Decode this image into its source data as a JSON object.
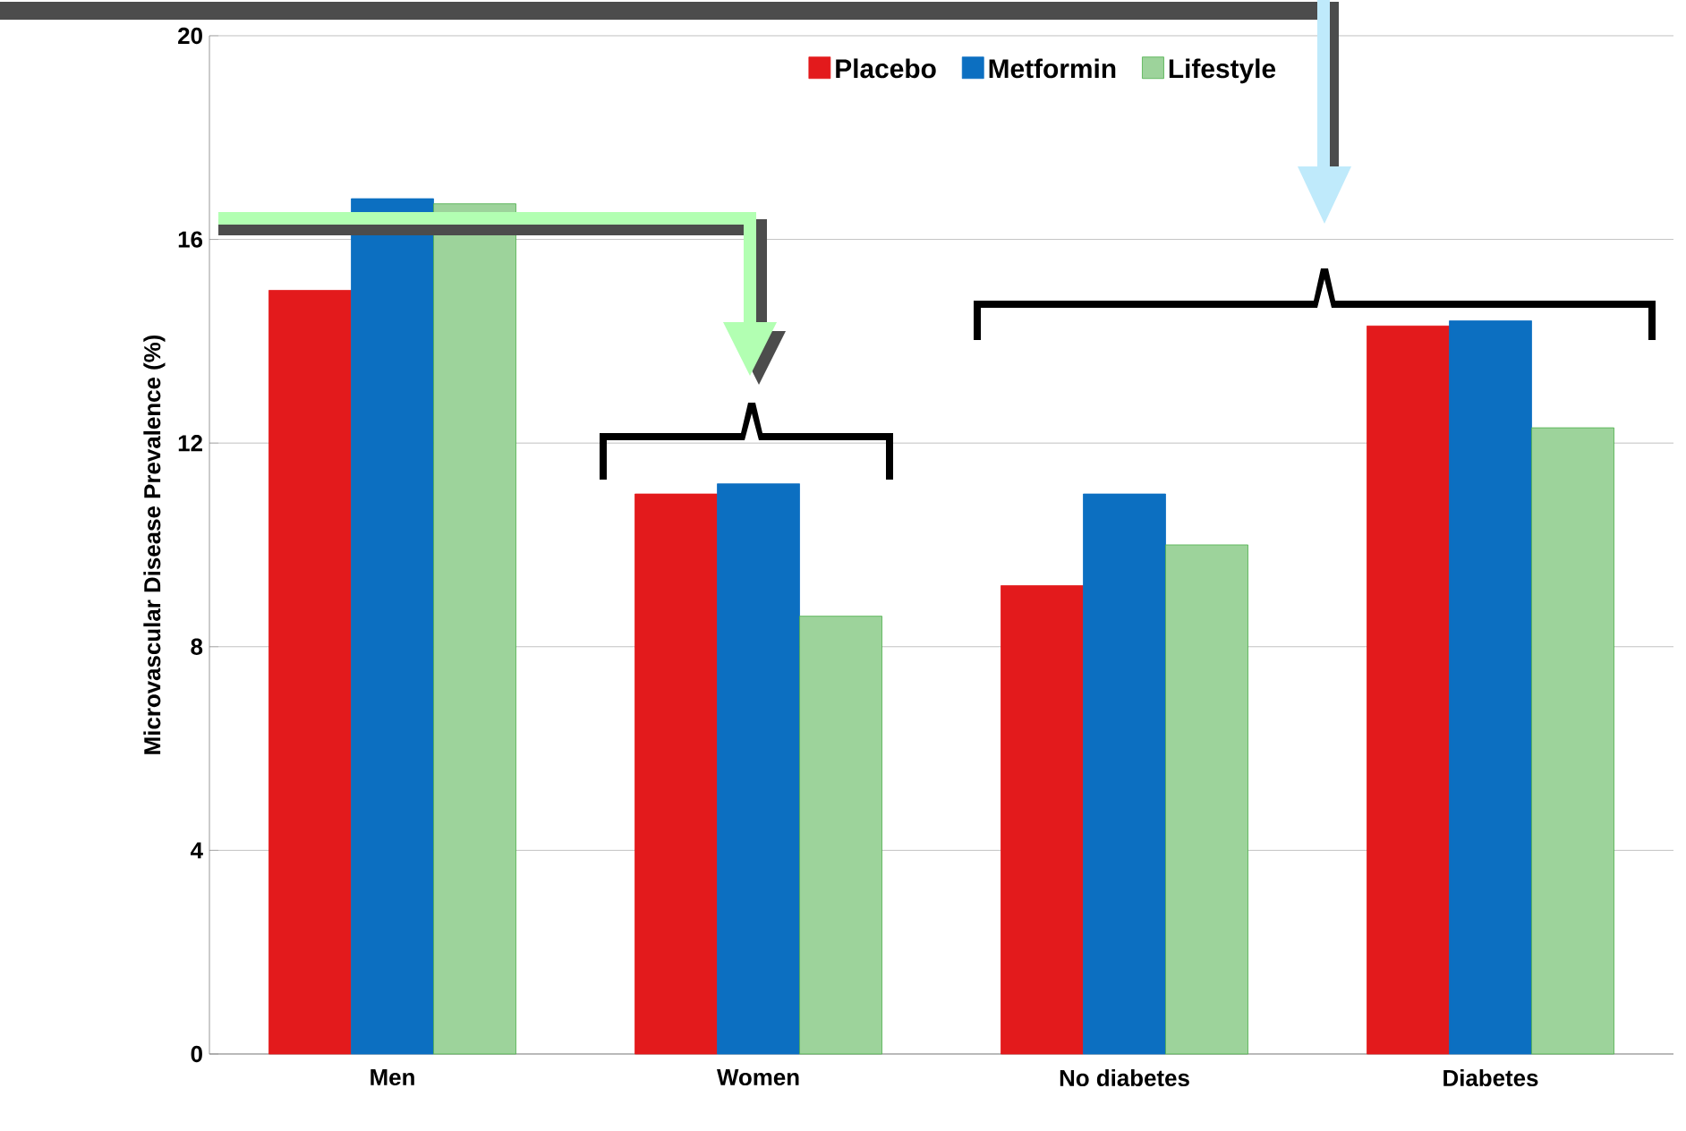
{
  "chart_data": {
    "type": "bar",
    "ylabel": "Microvascular Disease Prevalence (%)",
    "categories": [
      "Men",
      "Women",
      "No diabetes",
      "Diabetes"
    ],
    "series": [
      {
        "name": "Placebo",
        "color": "#e31a1c",
        "values": [
          15.0,
          11.0,
          9.2,
          14.3
        ]
      },
      {
        "name": "Metformin",
        "color": "#0c6fc1",
        "values": [
          16.8,
          11.2,
          11.0,
          14.4
        ]
      },
      {
        "name": "Lifestyle",
        "color": "#4daf4a",
        "values": [
          16.7,
          8.6,
          10.0,
          12.3
        ]
      }
    ],
    "ylim": [
      0,
      20
    ],
    "yticks": [
      0,
      4,
      8,
      12,
      16,
      20
    ],
    "grid": "y",
    "legend": "top right"
  }
}
